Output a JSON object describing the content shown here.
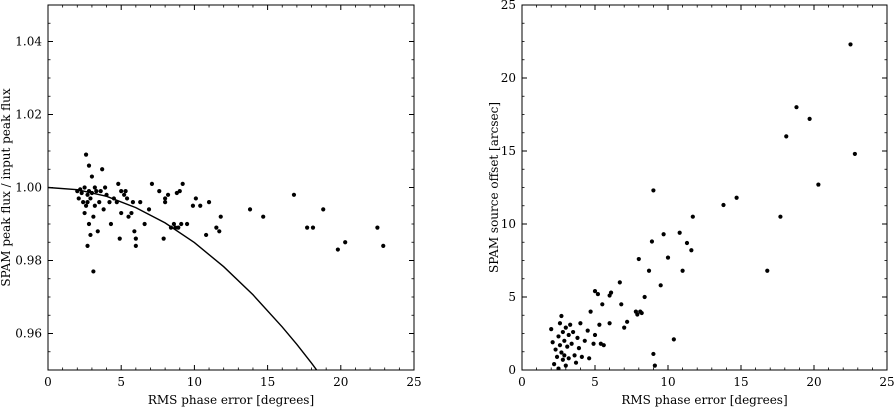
{
  "chart_data": [
    {
      "type": "scatter",
      "xlabel": "RMS phase error [degrees]",
      "ylabel": "SPAM peak flux / input peak flux",
      "xlim": [
        0,
        25
      ],
      "ylim": [
        0.95,
        1.05
      ],
      "xticks": [
        0,
        5,
        10,
        15,
        20,
        25
      ],
      "yticks": [
        0.96,
        0.98,
        1.0,
        1.02,
        1.04
      ],
      "ytick_labels": [
        "0.96",
        "0.98",
        "1.00",
        "1.02",
        "1.04"
      ],
      "grid": false,
      "curve": {
        "type": "line",
        "description": "model y = exp(-(x in radians)^2 / 2)",
        "x": [
          0,
          2,
          4,
          6,
          8,
          10,
          12,
          14,
          16,
          17,
          18,
          18.5
        ],
        "y": [
          1.0,
          0.9994,
          0.9976,
          0.9945,
          0.9903,
          0.9849,
          0.9783,
          0.9706,
          0.9618,
          0.957,
          0.9519,
          0.9492
        ]
      },
      "points": [
        [
          2.0,
          0.999
        ],
        [
          2.1,
          0.997
        ],
        [
          2.2,
          0.9995
        ],
        [
          2.3,
          0.9985
        ],
        [
          2.4,
          0.996
        ],
        [
          2.5,
          1.0
        ],
        [
          2.5,
          0.993
        ],
        [
          2.6,
          0.995
        ],
        [
          2.6,
          1.009
        ],
        [
          2.7,
          0.998
        ],
        [
          2.7,
          0.996
        ],
        [
          2.7,
          0.984
        ],
        [
          2.8,
          0.999
        ],
        [
          2.8,
          0.99
        ],
        [
          2.8,
          1.006
        ],
        [
          2.9,
          0.997
        ],
        [
          2.9,
          0.987
        ],
        [
          3.0,
          0.9985
        ],
        [
          3.0,
          1.003
        ],
        [
          3.1,
          0.992
        ],
        [
          3.1,
          0.977
        ],
        [
          3.2,
          1.0
        ],
        [
          3.2,
          0.995
        ],
        [
          3.3,
          0.999
        ],
        [
          3.4,
          0.988
        ],
        [
          3.5,
          0.996
        ],
        [
          3.6,
          0.999
        ],
        [
          3.7,
          1.005
        ],
        [
          3.8,
          0.994
        ],
        [
          3.9,
          1.0
        ],
        [
          4.0,
          0.998
        ],
        [
          4.2,
          0.996
        ],
        [
          4.3,
          0.99
        ],
        [
          4.5,
          0.997
        ],
        [
          4.7,
          0.996
        ],
        [
          4.8,
          1.001
        ],
        [
          4.9,
          0.986
        ],
        [
          5.0,
          0.999
        ],
        [
          5.0,
          0.993
        ],
        [
          5.2,
          0.998
        ],
        [
          5.3,
          0.999
        ],
        [
          5.4,
          0.997
        ],
        [
          5.5,
          0.992
        ],
        [
          5.7,
          0.993
        ],
        [
          5.8,
          0.996
        ],
        [
          5.9,
          0.988
        ],
        [
          6.0,
          0.986
        ],
        [
          6.0,
          0.984
        ],
        [
          6.3,
          0.996
        ],
        [
          6.6,
          0.99
        ],
        [
          6.9,
          0.994
        ],
        [
          7.1,
          1.001
        ],
        [
          7.6,
          0.999
        ],
        [
          7.9,
          0.986
        ],
        [
          8.0,
          0.996
        ],
        [
          8.0,
          0.997
        ],
        [
          8.2,
          0.998
        ],
        [
          8.4,
          0.989
        ],
        [
          8.6,
          0.99
        ],
        [
          8.7,
          0.989
        ],
        [
          8.8,
          0.9985
        ],
        [
          8.9,
          0.989
        ],
        [
          9.0,
          0.999
        ],
        [
          9.1,
          0.99
        ],
        [
          9.2,
          1.001
        ],
        [
          9.5,
          0.99
        ],
        [
          9.9,
          0.995
        ],
        [
          10.1,
          0.997
        ],
        [
          10.4,
          0.995
        ],
        [
          10.8,
          0.987
        ],
        [
          11.0,
          0.996
        ],
        [
          11.5,
          0.989
        ],
        [
          11.7,
          0.988
        ],
        [
          11.8,
          0.992
        ],
        [
          13.8,
          0.994
        ],
        [
          14.7,
          0.992
        ],
        [
          16.8,
          0.998
        ],
        [
          17.7,
          0.989
        ],
        [
          18.1,
          0.989
        ],
        [
          18.8,
          0.994
        ],
        [
          19.8,
          0.983
        ],
        [
          20.3,
          0.985
        ],
        [
          22.5,
          0.989
        ],
        [
          22.9,
          0.984
        ]
      ]
    },
    {
      "type": "scatter",
      "xlabel": "RMS phase error [degrees]",
      "ylabel": "SPAM source offset [arcsec]",
      "xlim": [
        0,
        25
      ],
      "ylim": [
        0,
        25
      ],
      "xticks": [
        0,
        5,
        10,
        15,
        20,
        25
      ],
      "yticks": [
        0,
        5,
        10,
        15,
        20,
        25
      ],
      "ytick_labels": [
        "0",
        "5",
        "10",
        "15",
        "20",
        "25"
      ],
      "grid": false,
      "points": [
        [
          2.0,
          2.8
        ],
        [
          2.1,
          1.9
        ],
        [
          2.2,
          0.4
        ],
        [
          2.3,
          1.4
        ],
        [
          2.4,
          0.9
        ],
        [
          2.5,
          2.3
        ],
        [
          2.5,
          0.1
        ],
        [
          2.6,
          3.2
        ],
        [
          2.6,
          1.7
        ],
        [
          2.7,
          3.7
        ],
        [
          2.7,
          1.2
        ],
        [
          2.8,
          2.6
        ],
        [
          2.8,
          0.7
        ],
        [
          2.9,
          2.0
        ],
        [
          2.9,
          1.0
        ],
        [
          3.0,
          2.9
        ],
        [
          3.0,
          0.3
        ],
        [
          3.1,
          1.6
        ],
        [
          3.2,
          2.4
        ],
        [
          3.2,
          0.8
        ],
        [
          3.3,
          3.1
        ],
        [
          3.4,
          1.8
        ],
        [
          3.5,
          2.6
        ],
        [
          3.6,
          1.0
        ],
        [
          3.7,
          0.5
        ],
        [
          3.8,
          2.2
        ],
        [
          3.9,
          1.5
        ],
        [
          4.0,
          3.2
        ],
        [
          4.1,
          0.9
        ],
        [
          4.3,
          2.0
        ],
        [
          4.5,
          2.7
        ],
        [
          4.6,
          0.8
        ],
        [
          4.7,
          4.0
        ],
        [
          4.9,
          1.8
        ],
        [
          5.0,
          5.4
        ],
        [
          5.0,
          2.4
        ],
        [
          5.2,
          5.2
        ],
        [
          5.3,
          3.1
        ],
        [
          5.4,
          1.8
        ],
        [
          5.5,
          4.5
        ],
        [
          5.6,
          1.7
        ],
        [
          6.0,
          5.1
        ],
        [
          6.0,
          3.2
        ],
        [
          6.1,
          5.3
        ],
        [
          6.7,
          6.0
        ],
        [
          6.8,
          4.5
        ],
        [
          7.0,
          2.9
        ],
        [
          7.2,
          3.3
        ],
        [
          7.8,
          4.0
        ],
        [
          7.9,
          3.8
        ],
        [
          8.0,
          7.6
        ],
        [
          8.1,
          4.0
        ],
        [
          8.2,
          3.9
        ],
        [
          8.4,
          5.0
        ],
        [
          8.7,
          6.8
        ],
        [
          8.9,
          8.8
        ],
        [
          9.0,
          12.3
        ],
        [
          9.0,
          1.1
        ],
        [
          9.1,
          0.3
        ],
        [
          9.5,
          5.8
        ],
        [
          9.7,
          9.3
        ],
        [
          10.0,
          7.7
        ],
        [
          10.4,
          2.1
        ],
        [
          10.8,
          9.4
        ],
        [
          11.0,
          6.8
        ],
        [
          11.3,
          8.7
        ],
        [
          11.6,
          8.2
        ],
        [
          11.7,
          10.5
        ],
        [
          13.8,
          11.3
        ],
        [
          14.7,
          11.8
        ],
        [
          16.8,
          6.8
        ],
        [
          17.7,
          10.5
        ],
        [
          18.1,
          16.0
        ],
        [
          18.8,
          18.0
        ],
        [
          19.7,
          17.2
        ],
        [
          20.3,
          12.7
        ],
        [
          22.5,
          22.3
        ],
        [
          22.8,
          14.8
        ]
      ]
    }
  ]
}
